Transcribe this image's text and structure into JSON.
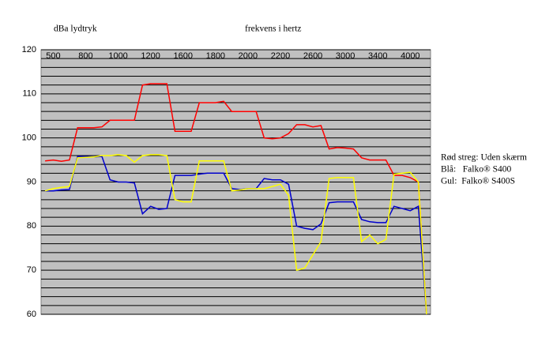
{
  "chart_data": {
    "type": "line",
    "y_label": "dBa lydtryk",
    "x_label": "frekvens i hertz",
    "categories": [
      null,
      "500",
      null,
      null,
      null,
      "800",
      null,
      null,
      null,
      "1000",
      null,
      null,
      null,
      "1200",
      null,
      null,
      null,
      "1600",
      null,
      null,
      null,
      "1800",
      null,
      null,
      null,
      "2000",
      null,
      null,
      null,
      "2200",
      null,
      null,
      null,
      "2600",
      null,
      null,
      null,
      "3000",
      null,
      null,
      null,
      "3400",
      null,
      null,
      null,
      "4000",
      null,
      null
    ],
    "series": [
      {
        "name": "Rød streg: Uden skærm",
        "color": "#ff0000",
        "values": [
          94.8,
          95,
          94.7,
          95,
          102.3,
          102.3,
          102.3,
          102.5,
          104,
          104,
          104,
          104,
          112,
          112.3,
          112.3,
          112.3,
          101.5,
          101.5,
          101.5,
          108,
          108,
          108,
          108.3,
          106,
          106,
          106,
          106,
          100,
          99.8,
          100,
          101,
          103,
          103,
          102.5,
          102.8,
          97.5,
          97.8,
          97.7,
          97.5,
          95.5,
          95,
          95,
          95,
          91.5,
          91.5,
          91,
          90,
          60
        ]
      },
      {
        "name": "Blå:   Falko® S400",
        "color": "#0000cc",
        "values": [
          88,
          88,
          88.2,
          88.3,
          95.8,
          95.8,
          95.7,
          95.8,
          90.5,
          90,
          90,
          89.8,
          82.8,
          84.5,
          83.8,
          84,
          91.5,
          91.5,
          91.5,
          91.8,
          92,
          92,
          92,
          88.5,
          88.3,
          88.5,
          88.5,
          90.8,
          90.5,
          90.5,
          89.5,
          80,
          79.5,
          79.2,
          80.5,
          85.3,
          85.5,
          85.5,
          85.5,
          81.5,
          81,
          80.8,
          80.8,
          84.5,
          84,
          83.5,
          84.5,
          60
        ]
      },
      {
        "name": "Gul:  Falko® S400S",
        "color": "#ffff00",
        "values": [
          88,
          88.5,
          88.8,
          89,
          95.5,
          95.6,
          95.7,
          96,
          96,
          96.2,
          96,
          94.5,
          96,
          96.2,
          96.2,
          96,
          86,
          85.5,
          85.5,
          94.8,
          94.8,
          94.8,
          94.8,
          88,
          88.2,
          88.5,
          88.5,
          88.5,
          89,
          89.5,
          87,
          70,
          70.5,
          73.5,
          76.5,
          90.8,
          91,
          91,
          91,
          76.5,
          78,
          76,
          77,
          91.8,
          92,
          92.2,
          90,
          60
        ]
      }
    ],
    "ylim": [
      60,
      120
    ],
    "yticks": [
      60,
      70,
      80,
      90,
      100,
      110,
      120
    ],
    "grid": true,
    "legend": "right"
  }
}
